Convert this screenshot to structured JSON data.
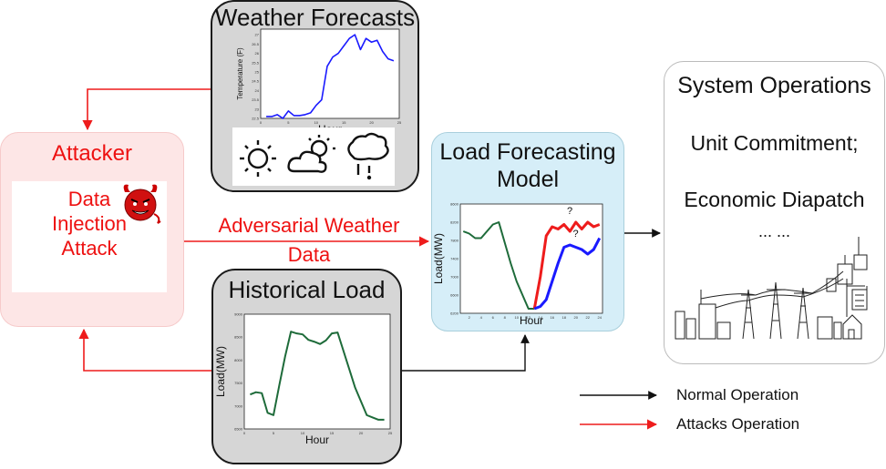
{
  "weather": {
    "title": "Weather Forecasts",
    "chart": {
      "ylabel": "Temperature (F)",
      "xlabel": "Hour",
      "xticks": [
        "0",
        "5",
        "10",
        "15",
        "20",
        "25"
      ],
      "yticks": [
        "22.5",
        "23",
        "23.5",
        "24",
        "24.5",
        "25",
        "25.5",
        "26",
        "26.5",
        "27"
      ],
      "x": [
        1,
        2,
        3,
        4,
        5,
        6,
        7,
        8,
        9,
        10,
        11,
        12,
        13,
        14,
        15,
        16,
        17,
        18,
        19,
        20,
        21,
        22,
        23,
        24
      ],
      "y": [
        22.6,
        22.6,
        22.7,
        22.5,
        22.9,
        22.65,
        22.65,
        22.7,
        22.8,
        23.2,
        23.5,
        25.3,
        25.8,
        26.0,
        26.4,
        26.8,
        27.0,
        26.2,
        26.8,
        26.6,
        26.7,
        26.1,
        25.7,
        25.6
      ]
    },
    "icons": [
      "sun-icon",
      "partly-cloudy-icon",
      "rain-cloud-icon"
    ]
  },
  "attacker": {
    "title": "Attacker",
    "text_lines": [
      "Data",
      "Injection",
      "Attack"
    ],
    "icon": "devil-icon"
  },
  "adversarial": {
    "line1": "Adversarial Weather",
    "line2": "Data"
  },
  "history": {
    "title": "Historical Load",
    "chart": {
      "ylabel": "Load(MW)",
      "xlabel": "Hour",
      "xticks": [
        "0",
        "5",
        "10",
        "15",
        "20",
        "25"
      ],
      "yticks": [
        "6500",
        "7000",
        "7500",
        "8000",
        "8500",
        "9000"
      ],
      "x": [
        1,
        2,
        3,
        4,
        5,
        6,
        7,
        8,
        9,
        10,
        11,
        12,
        13,
        14,
        15,
        16,
        17,
        18,
        19,
        20,
        21,
        22,
        23,
        24
      ],
      "y": [
        7250,
        7300,
        7280,
        6850,
        6800,
        7450,
        8080,
        8620,
        8580,
        8560,
        8440,
        8400,
        8350,
        8430,
        8580,
        8600,
        8200,
        7800,
        7400,
        7100,
        6800,
        6750,
        6700,
        6700
      ]
    }
  },
  "lfm": {
    "title_line1": "Load Forecasting",
    "title_line2": "Model",
    "chart": {
      "ylabel": "Load(MW)",
      "xlabel": "Hour",
      "xticks": [
        "2",
        "4",
        "6",
        "8",
        "10",
        "12",
        "14",
        "16",
        "18",
        "20",
        "22",
        "24"
      ],
      "yticks": [
        "6200",
        "6600",
        "7000",
        "7400",
        "7800",
        "8200",
        "8600"
      ],
      "history_x": [
        1,
        2,
        3,
        4,
        5,
        6,
        7,
        8,
        9,
        10,
        11,
        12,
        13
      ],
      "history_y": [
        8000,
        7950,
        7850,
        7850,
        8000,
        8150,
        8200,
        7750,
        7300,
        6900,
        6600,
        6300,
        6300
      ],
      "attack_x": [
        13,
        14,
        15,
        16,
        17,
        18,
        19,
        20,
        21,
        22,
        23,
        24
      ],
      "attack_y": [
        6300,
        7000,
        7900,
        8100,
        8050,
        8150,
        8000,
        8200,
        8050,
        8200,
        8100,
        8150
      ],
      "normal_x": [
        13,
        14,
        15,
        16,
        17,
        18,
        19,
        20,
        21,
        22,
        23,
        24
      ],
      "normal_y": [
        6300,
        6350,
        6500,
        6900,
        7300,
        7650,
        7700,
        7650,
        7600,
        7500,
        7600,
        7850
      ],
      "annotation": "?"
    }
  },
  "sysops": {
    "title": "System Operations",
    "line2": "Unit Commitment;",
    "line3": "Economic Diapatch",
    "line4": "... ..."
  },
  "legend": {
    "normal": "Normal Operation",
    "attack": "Attacks Operation"
  },
  "colors": {
    "attack": "#ee1c1c",
    "normal": "#111111",
    "weather_line": "#1a1aff",
    "history_line": "#1e6b3a",
    "forecast_normal": "#1a1aff"
  }
}
